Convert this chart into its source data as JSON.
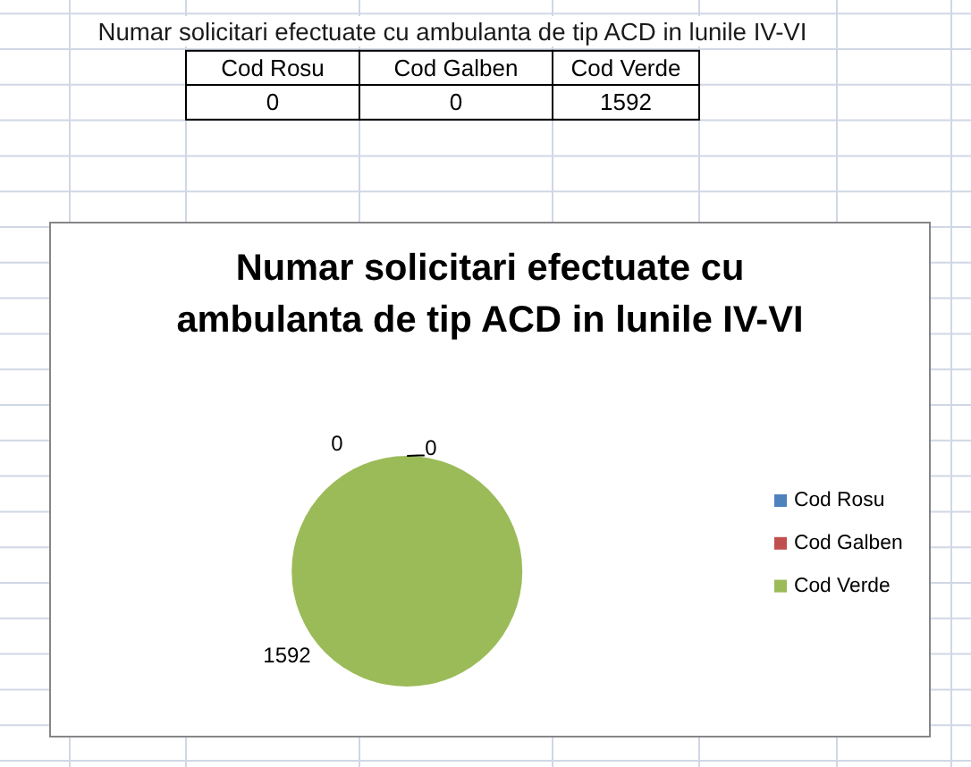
{
  "chart_data": [
    {
      "type": "other",
      "title": "Numar solicitari efectuate cu ambulanta de tip ACD in lunile IV-VI",
      "categories": [
        "Cod Rosu",
        "Cod Galben",
        "Cod Verde"
      ],
      "values": [
        0,
        0,
        1592
      ],
      "value_labels": [
        "0",
        "0",
        "1592"
      ]
    },
    {
      "type": "pie",
      "title": "Numar solicitari efectuate cu ambulanta de tip ACD in lunile IV-VI",
      "categories": [
        "Cod Rosu",
        "Cod Galben",
        "Cod Verde"
      ],
      "values": [
        0,
        0,
        1592
      ],
      "colors": [
        "#4f81bd",
        "#c0504d",
        "#9bbb59"
      ],
      "value_labels": [
        "0",
        "0",
        "1592"
      ],
      "legend": "right"
    }
  ]
}
